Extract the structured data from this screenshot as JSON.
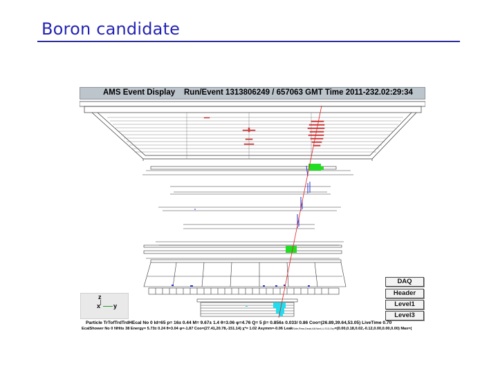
{
  "slide": {
    "title": "Boron candidate"
  },
  "event_display": {
    "app_title": "AMS Event Display",
    "run_event": "Run/Event 1313806249 / 657063  GMT Time 2011-232.02:29:34",
    "axes": {
      "z": "z",
      "x": "x",
      "y": "y"
    },
    "buttons": [
      "DAQ",
      "Header",
      "Level1",
      "Level3"
    ],
    "particle_info": "Particle TrTofTrdTrdHEcal No 0 Id=65 p=    16±  0.44 M=   9.67±   1.4 θ=3.06 φ=4.76 Q= 5  β= 0.856± 0.033/  0.86  Coo=(26.89,39.64,53.05) LiveTime 0.70",
    "shower_info": "EcalShower No 0 NHits 38 Energy=   5.73± 0.24  θ=3.04 φ=-1.87 Coo=(27.41,20.78,-151.14) χ²= 1.02 Asymm=-0.06 Leak",
    "shower_info_tiny": "Side,Rear,Dead,All,Noni,Li,S13,Orp",
    "shower_info_tail": "=(0.00,0.18,0.02,-0.12,0.00,0.00,0.00) Max=("
  },
  "colors": {
    "title": "#2424b4",
    "rule": "#2a2a9a",
    "track": "#e02020",
    "tof_hit": "#22dd22",
    "tracker_hit": "#2233cc",
    "ecal_hit": "#22ddee",
    "header_bg": "#bcc4cc"
  }
}
